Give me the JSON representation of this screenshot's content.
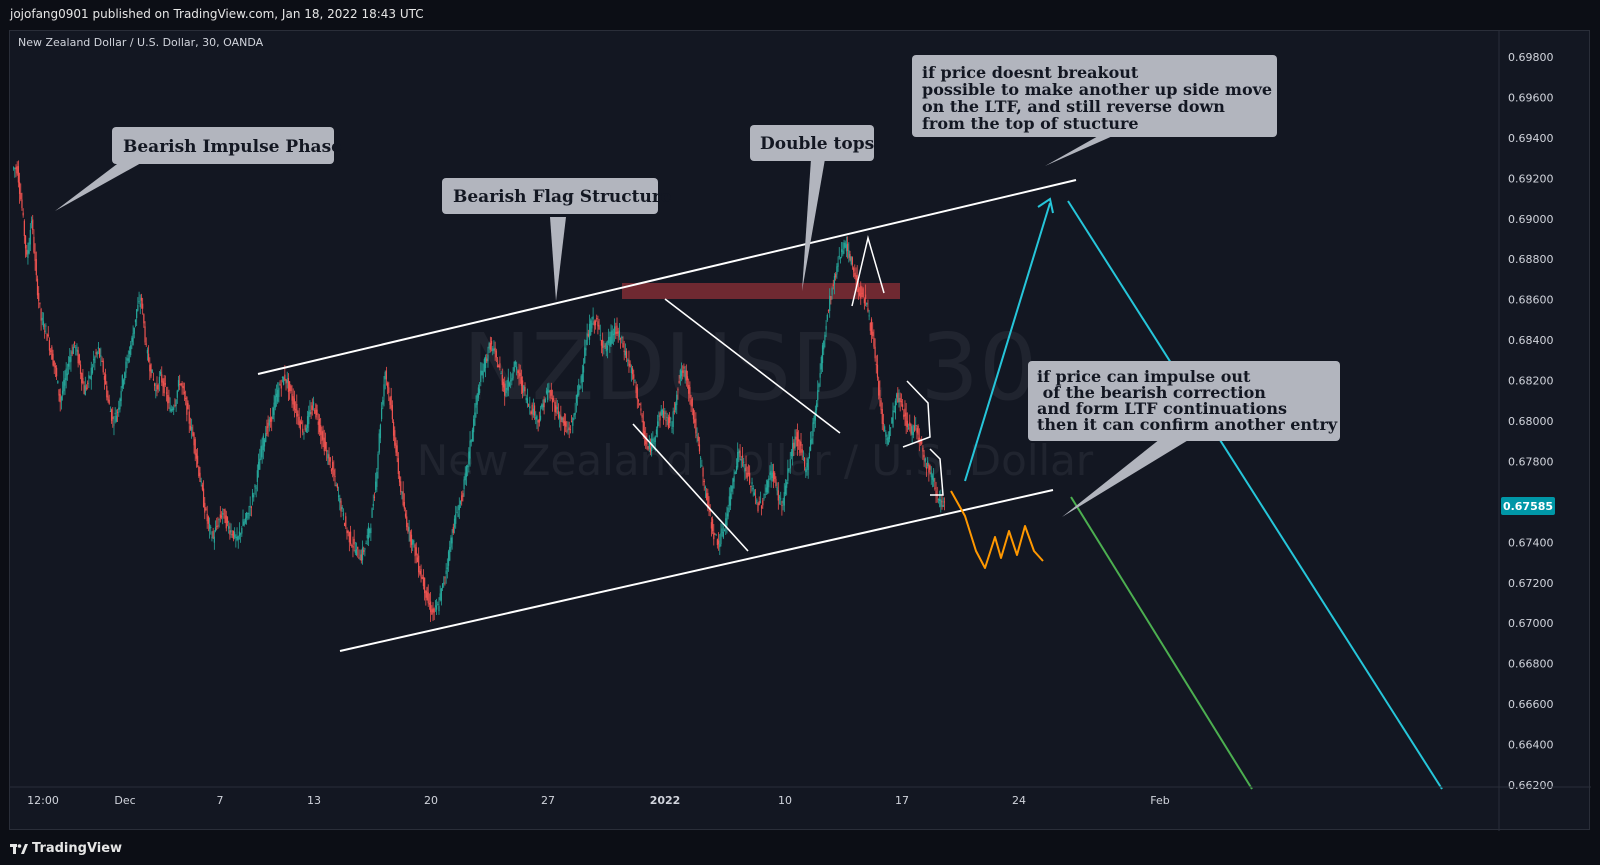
{
  "publisher_line": "jojofang0901 published on TradingView.com, Jan 18, 2022 18:43 UTC",
  "footer_brand": "TradingView",
  "chart_data": {
    "type": "line",
    "title": "New Zealand Dollar / U.S. Dollar, 30, OANDA",
    "watermark_symbol": "NZDUSD, 30",
    "watermark_name": "New Zealand Dollar / U.S. Dollar",
    "last_price": "0.67585",
    "ylim": [
      0.6619,
      0.699
    ],
    "y_ticks": [
      "0.69800",
      "0.69600",
      "0.69400",
      "0.69200",
      "0.69000",
      "0.68800",
      "0.68600",
      "0.68400",
      "0.68200",
      "0.68000",
      "0.67800",
      "0.67600",
      "0.67400",
      "0.67200",
      "0.67000",
      "0.66800",
      "0.66600",
      "0.66400",
      "0.66200"
    ],
    "x_ticks": [
      "12:00",
      "Dec",
      "7",
      "13",
      "20",
      "27",
      "2022",
      "10",
      "17",
      "24",
      "Feb"
    ],
    "grid": false,
    "colors": {
      "background": "#131722",
      "up_candle": "#26a69a",
      "down_candle": "#ef5350",
      "trendline": "#ffffff",
      "resistance_zone": "#7a2b33",
      "projection_up": "#26c6da",
      "projection_down": "#4caf50",
      "ltf_path": "#ff9800",
      "callout_bg": "#b2b5be",
      "last_price_bg": "#0097a7"
    },
    "series": [
      {
        "values": [
          0.6925,
          0.6905,
          0.688,
          0.69,
          0.687,
          0.685,
          0.6845,
          0.6835,
          0.6825,
          0.681,
          0.682,
          0.6832,
          0.6838,
          0.6828,
          0.6815,
          0.682,
          0.683,
          0.6835,
          0.6825,
          0.681,
          0.68,
          0.6805,
          0.682,
          0.683,
          0.684,
          0.6855,
          0.686,
          0.6835,
          0.6825,
          0.6815,
          0.6822,
          0.6815,
          0.6805,
          0.681,
          0.682,
          0.6812,
          0.68,
          0.679,
          0.6775,
          0.676,
          0.6748,
          0.6742,
          0.675,
          0.6755,
          0.6748,
          0.6745,
          0.674,
          0.6748,
          0.6752,
          0.676,
          0.677,
          0.6785,
          0.6795,
          0.68,
          0.681,
          0.6818,
          0.6822,
          0.6815,
          0.6808,
          0.68,
          0.6795,
          0.6802,
          0.6808,
          0.68,
          0.679,
          0.6782,
          0.6775,
          0.6765,
          0.6755,
          0.6745,
          0.674,
          0.6735,
          0.6733,
          0.674,
          0.675,
          0.677,
          0.68,
          0.6825,
          0.681,
          0.679,
          0.677,
          0.6755,
          0.6745,
          0.6738,
          0.6728,
          0.672,
          0.671,
          0.6705,
          0.6708,
          0.6718,
          0.673,
          0.6745,
          0.6755,
          0.6762,
          0.6775,
          0.6792,
          0.6808,
          0.6822,
          0.683,
          0.6838,
          0.6832,
          0.6825,
          0.6815,
          0.682,
          0.6828,
          0.6822,
          0.6815,
          0.6808,
          0.6805,
          0.68,
          0.6808,
          0.6815,
          0.681,
          0.6805,
          0.68,
          0.6795,
          0.6798,
          0.681,
          0.6822,
          0.6838,
          0.6848,
          0.685,
          0.6842,
          0.6835,
          0.684,
          0.6845,
          0.6842,
          0.6835,
          0.6828,
          0.682,
          0.681,
          0.6795,
          0.6785,
          0.679,
          0.68,
          0.6805,
          0.68,
          0.6798,
          0.6815,
          0.6825,
          0.6822,
          0.681,
          0.6795,
          0.678,
          0.6765,
          0.6752,
          0.6742,
          0.674,
          0.6748,
          0.676,
          0.6775,
          0.6785,
          0.6778,
          0.6772,
          0.6765,
          0.6758,
          0.676,
          0.677,
          0.6775,
          0.6765,
          0.6758,
          0.677,
          0.6785,
          0.6792,
          0.6785,
          0.6775,
          0.679,
          0.6805,
          0.6825,
          0.6845,
          0.686,
          0.687,
          0.6882,
          0.6888,
          0.6882,
          0.6875,
          0.6865,
          0.6862,
          0.6855,
          0.684,
          0.682,
          0.68,
          0.679,
          0.68,
          0.6812,
          0.6808,
          0.68,
          0.6795,
          0.6798,
          0.679,
          0.678,
          0.6775,
          0.6768,
          0.676,
          0.6758
        ]
      }
    ],
    "annotations": [
      "Bearish Impulse Phase",
      "Bearish Flag Structure",
      "Double tops",
      "if price doesnt breakout\npossible to make another up side move\non the LTF, and still reverse down\nfrom the top of stucture",
      "if price can impulse out\n of the bearish correction\nand form LTF continuations\nthen it can confirm another entry"
    ]
  }
}
